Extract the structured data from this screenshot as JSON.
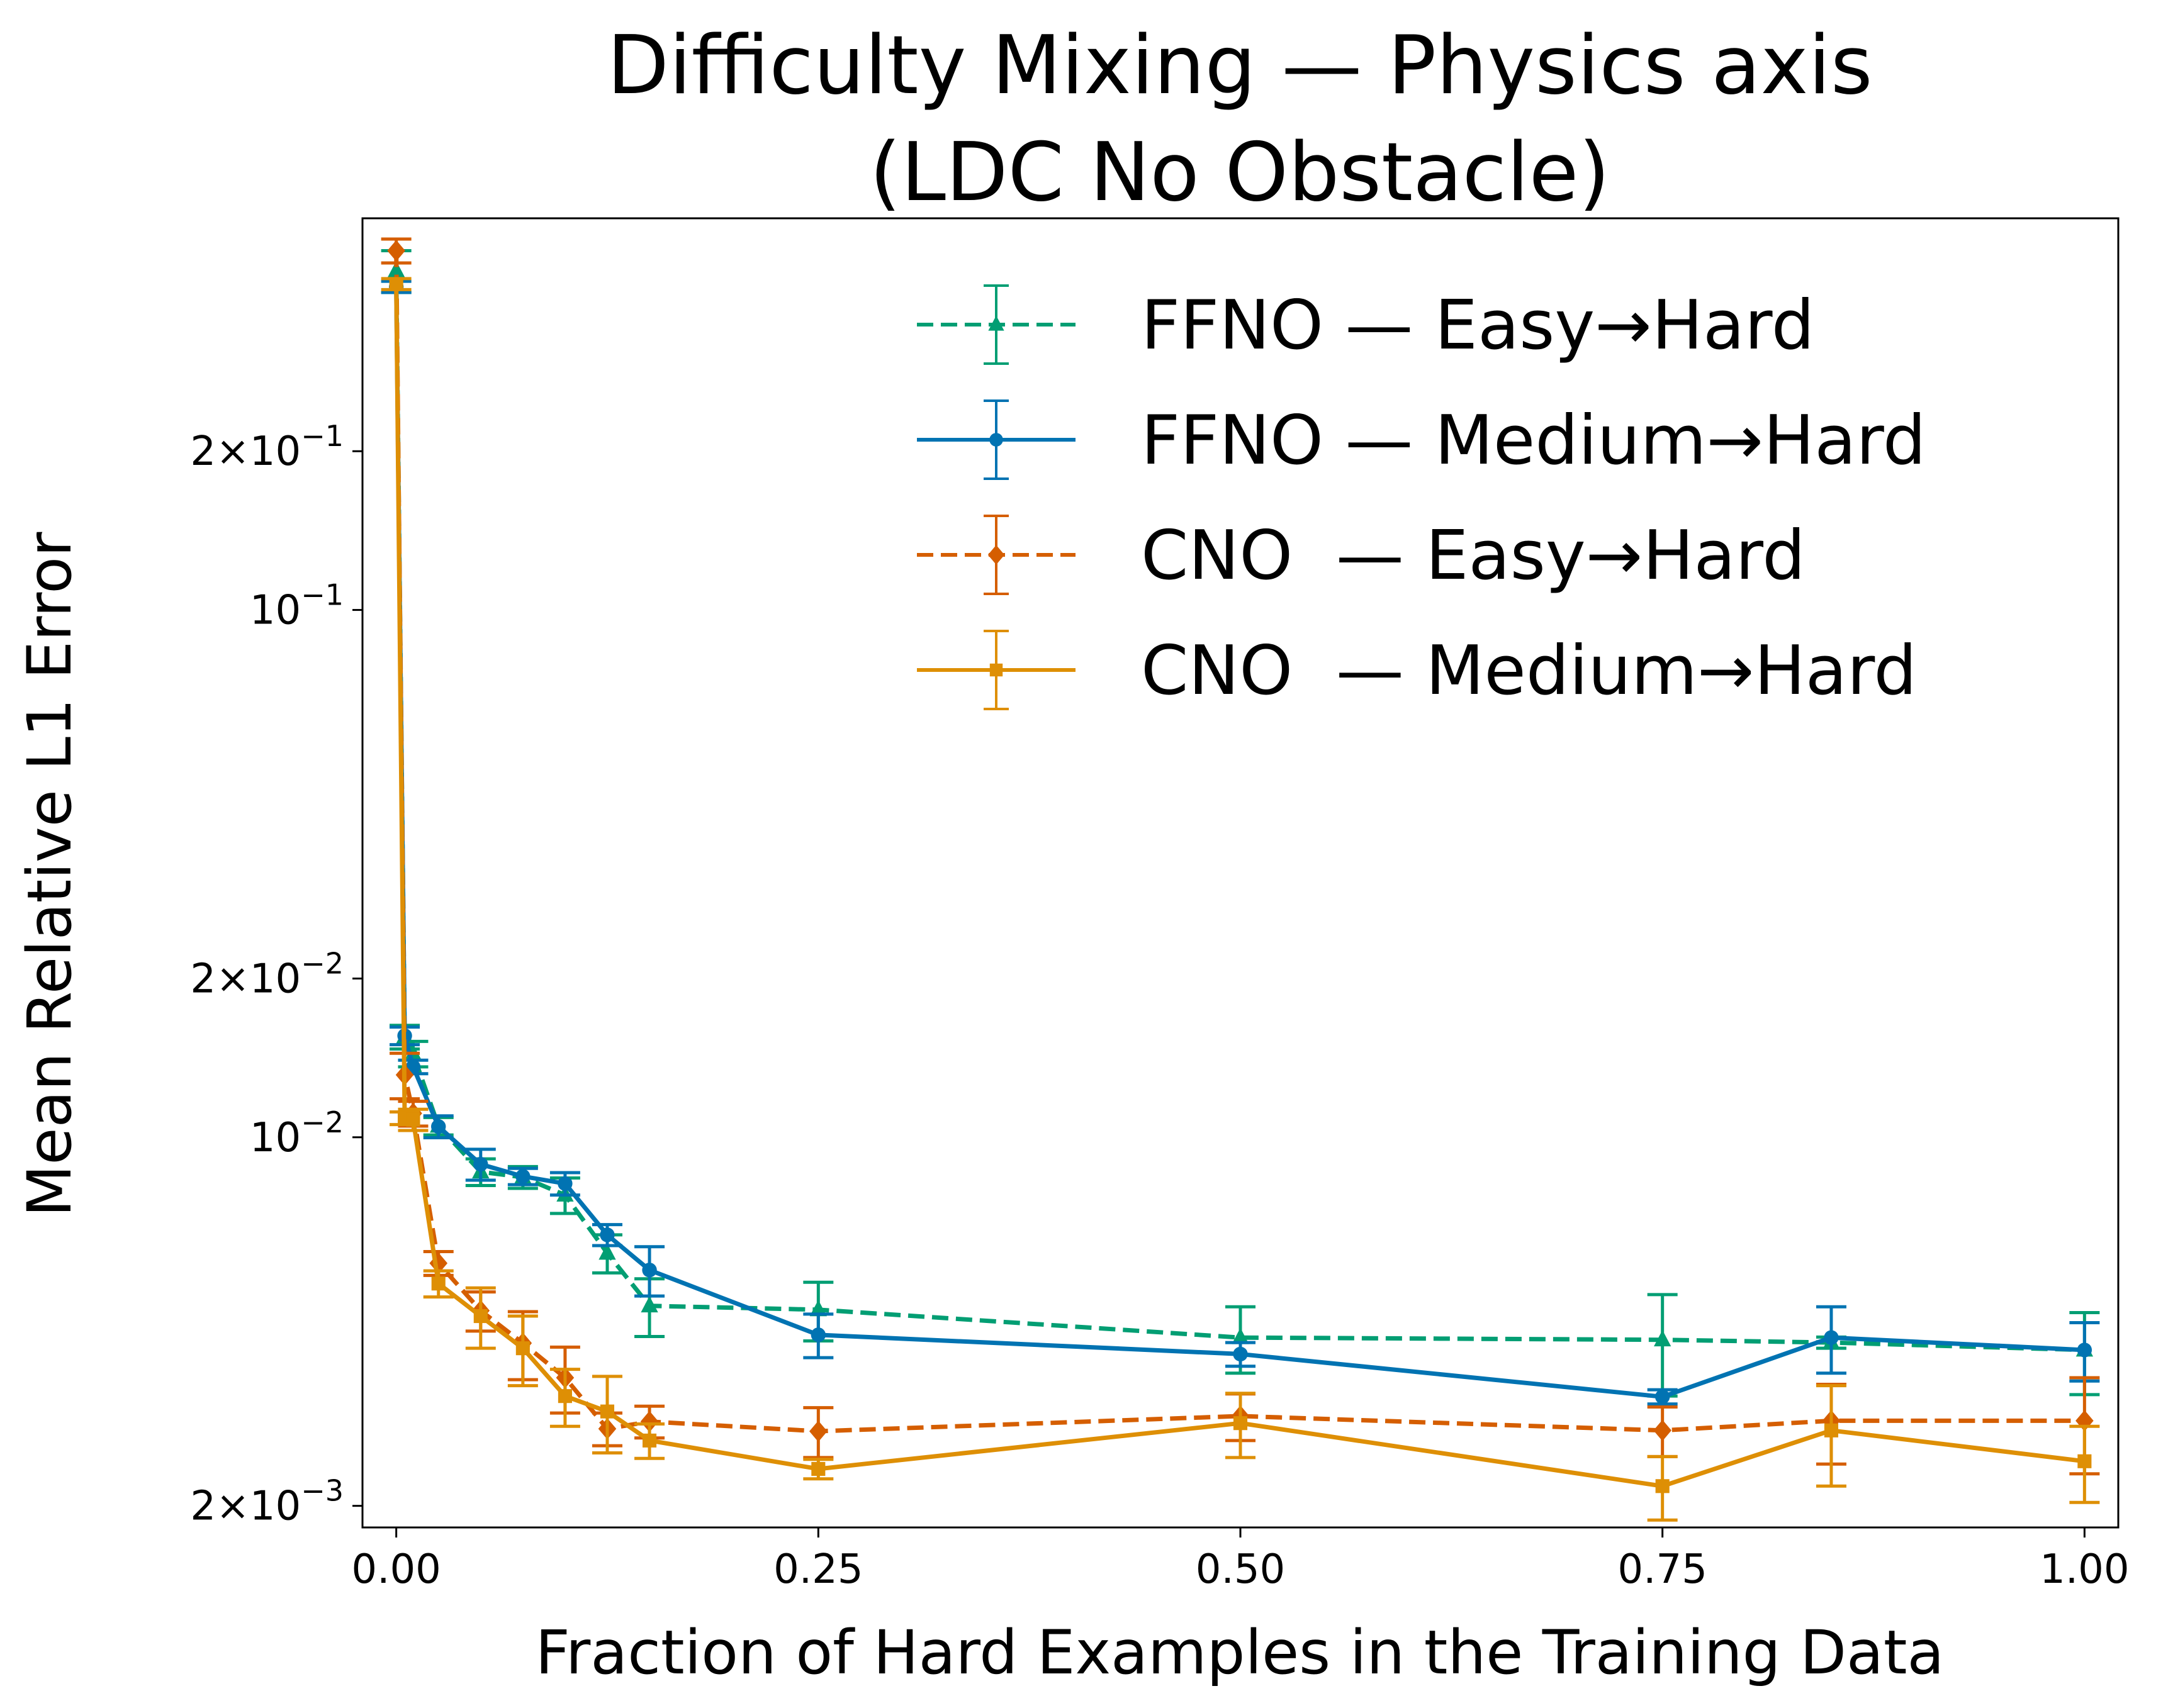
{
  "chart_data": {
    "type": "line",
    "title": [
      "Difficulty Mixing — Physics axis",
      "(LDC No Obstacle)"
    ],
    "xlabel": "Fraction of Hard Examples in the Training Data",
    "ylabel": "Mean Relative L1 Error",
    "xlim": [
      -0.02,
      1.02
    ],
    "ylim": [
      0.00182,
      0.553
    ],
    "yscale": "log",
    "grid": false,
    "legend_position": "top-right",
    "x_ticks": [
      "0.00",
      "0.25",
      "0.50",
      "0.75",
      "1.00"
    ],
    "x_tick_values": [
      0,
      0.25,
      0.5,
      0.75,
      1.0
    ],
    "y_ticks": [
      {
        "value": 0.2,
        "base": "2×10",
        "exp": "−1"
      },
      {
        "value": 0.1,
        "base": "10",
        "exp": "−1"
      },
      {
        "value": 0.02,
        "base": "2×10",
        "exp": "−2"
      },
      {
        "value": 0.01,
        "base": "10",
        "exp": "−2"
      },
      {
        "value": 0.002,
        "base": "2×10",
        "exp": "−3"
      }
    ],
    "x": [
      0,
      0.005,
      0.01,
      0.025,
      0.05,
      0.075,
      0.1,
      0.125,
      0.15,
      0.25,
      0.5,
      0.75,
      0.85,
      1.0
    ],
    "series": [
      {
        "name": "FFNO — Easy→Hard",
        "color": "#029E73",
        "dashed": true,
        "marker": "triangle",
        "values": [
          0.44,
          0.0155,
          0.0144,
          0.0105,
          0.0086,
          0.0084,
          0.00777,
          0.00603,
          0.00479,
          0.00471,
          0.00417,
          0.00413,
          0.00408,
          0.00395
        ],
        "errors": [
          0.04,
          0.0008,
          0.0008,
          0.0004,
          0.0005,
          0.0004,
          0.0006,
          0.0005,
          0.0006,
          0.0006,
          0.0006,
          0.0009,
          0.0001,
          0.0007
        ]
      },
      {
        "name": "FFNO — Medium→Hard",
        "color": "#0173B2",
        "dashed": false,
        "marker": "circle",
        "values": [
          0.41,
          0.01558,
          0.0136,
          0.01048,
          0.00889,
          0.00843,
          0.00817,
          0.00653,
          0.0056,
          0.00422,
          0.00388,
          0.00322,
          0.00417,
          0.00395
        ],
        "errors": [
          0.01,
          0.0006,
          0.0004,
          0.0005,
          0.0006,
          0.0003,
          0.0004,
          0.0003,
          0.0006,
          0.0004,
          0.0002,
          0.0001,
          0.0006,
          0.0005
        ]
      },
      {
        "name": "CNO  — Easy→Hard",
        "color": "#D55E00",
        "dashed": true,
        "marker": "diamond",
        "values": [
          0.48,
          0.01313,
          0.0111,
          0.00577,
          0.00469,
          0.00407,
          0.0035,
          0.0028,
          0.00289,
          0.00277,
          0.00296,
          0.00278,
          0.0029,
          0.0029
        ],
        "errors": [
          0.025,
          0.0013,
          0.0006,
          0.0003,
          0.0004,
          0.0006,
          0.0005,
          0.0002,
          0.0002,
          0.0003,
          0.0003,
          0.0003,
          0.0005,
          0.0006
        ]
      },
      {
        "name": "CNO  — Medium→Hard",
        "color": "#DE8F05",
        "dashed": false,
        "marker": "square",
        "values": [
          0.415,
          0.01087,
          0.0108,
          0.00528,
          0.00458,
          0.00398,
          0.00323,
          0.00302,
          0.00266,
          0.00235,
          0.00287,
          0.00218,
          0.00278,
          0.00243
        ],
        "errors": [
          0.01,
          0.0003,
          0.0005,
          0.0003,
          0.0006,
          0.0006,
          0.0004,
          0.0005,
          0.0002,
          0.0001,
          0.0004,
          0.0003,
          0.0006,
          0.0004
        ]
      }
    ]
  }
}
